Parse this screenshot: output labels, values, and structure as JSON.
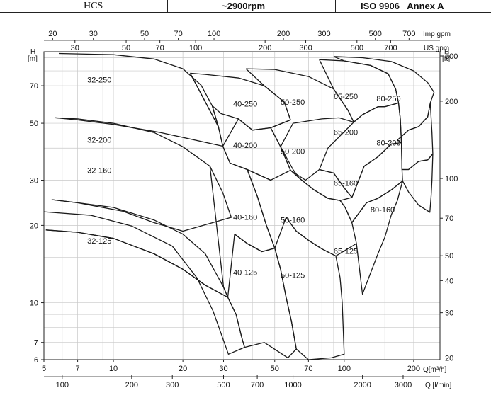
{
  "header": {
    "series": "HCS",
    "speed": "~2900rpm",
    "standard": "ISO 9906   Annex A"
  },
  "chart_data": {
    "type": "line",
    "title": "",
    "subtitle": "",
    "xlabel": "Q[m³/h]",
    "ylabel": "H [m]",
    "x_scale": "log",
    "y_scale": "log",
    "xlim": [
      5,
      260
    ],
    "ylim": [
      6,
      95
    ],
    "grid": true,
    "axis_labels": {
      "y_left_unit": "H\n[m]",
      "y_right_unit": "H\n[ft]",
      "x_bottom_unit": "Q[m³/h]",
      "x_lpm_unit": "Q [l/min]",
      "x_imp_unit": "Imp gpm",
      "x_us_unit": "US gpm"
    },
    "tick_labels": {
      "m3h": [
        "5",
        "7",
        "10",
        "20",
        "30",
        "50",
        "70",
        "100",
        "200"
      ],
      "lpm": [
        "100",
        "200",
        "300",
        "500",
        "700",
        "1000",
        "2000",
        "3000"
      ],
      "imp": [
        "20",
        "30",
        "50",
        "70",
        "100",
        "200",
        "300",
        "500",
        "700"
      ],
      "us": [
        "30",
        "50",
        "70",
        "100",
        "200",
        "300",
        "500",
        "700"
      ],
      "h_m": [
        "6",
        "7",
        "10",
        "20",
        "30",
        "50",
        "70"
      ],
      "h_ft": [
        "20",
        "30",
        "40",
        "50",
        "70",
        "100",
        "200",
        "300"
      ]
    },
    "scale_values": {
      "lpm": [
        100,
        200,
        300,
        500,
        700,
        1000,
        2000,
        3000
      ],
      "imp": [
        20,
        30,
        50,
        70,
        100,
        200,
        300,
        500,
        700
      ],
      "us": [
        30,
        50,
        70,
        100,
        200,
        300,
        500,
        700
      ],
      "h_ft": [
        20,
        30,
        40,
        50,
        70,
        100,
        200,
        300
      ]
    },
    "series": [
      {
        "name": "32-250",
        "points": [
          [
            5.8,
            93.5
          ],
          [
            10,
            92.5
          ],
          [
            15,
            89
          ],
          [
            20,
            81.5
          ],
          [
            24,
            70.3
          ],
          [
            26.8,
            58.5
          ],
          [
            28.5,
            48.5
          ],
          [
            29.8,
            40.7
          ],
          [
            16,
            46
          ],
          [
            10,
            49.5
          ],
          [
            7,
            51.5
          ],
          [
            5.6,
            52.5
          ]
        ],
        "label": [
          7.7,
          72
        ]
      },
      {
        "name": "32-200",
        "points": [
          [
            5.6,
            52.5
          ],
          [
            7,
            52
          ],
          [
            10,
            50
          ],
          [
            15,
            46
          ],
          [
            20,
            40.5
          ],
          [
            26.2,
            34
          ],
          [
            29.8,
            26.8
          ],
          [
            32.4,
            21.5
          ],
          [
            20,
            19
          ],
          [
            15,
            20.5
          ],
          [
            11,
            22.7
          ],
          [
            7,
            24.5
          ],
          [
            5.4,
            25.2
          ]
        ],
        "label": [
          7.7,
          42
        ]
      },
      {
        "name": "32-160",
        "points": [
          [
            5.4,
            25.2
          ],
          [
            7,
            24.5
          ],
          [
            10,
            23.5
          ],
          [
            15,
            21
          ],
          [
            20,
            18.5
          ],
          [
            25,
            15.5
          ],
          [
            30,
            11.5
          ],
          [
            31.3,
            10.5
          ],
          [
            25,
            11.7
          ],
          [
            20,
            13.5
          ],
          [
            15,
            15.5
          ],
          [
            10,
            17.8
          ],
          [
            7,
            18.8
          ],
          [
            5.1,
            19.2
          ]
        ],
        "label": [
          7.7,
          32
        ]
      },
      {
        "name": "32-125",
        "points": [
          [
            5.1,
            19.2
          ],
          [
            7,
            18.8
          ],
          [
            10,
            17.8
          ],
          [
            15,
            15.5
          ],
          [
            20,
            13.5
          ],
          [
            25,
            11.7
          ],
          [
            31.3,
            10.5
          ],
          [
            34,
            9
          ],
          [
            36,
            7.3
          ],
          [
            37,
            6.7
          ],
          [
            31.5,
            6.3
          ],
          [
            27,
            9.3
          ],
          [
            23,
            12.5
          ],
          [
            18,
            16.6
          ],
          [
            12,
            19.9
          ],
          [
            8,
            21.9
          ],
          [
            5,
            22.6
          ]
        ],
        "label": [
          7.7,
          17
        ]
      },
      {
        "name": "40-250",
        "points": [
          [
            21.5,
            78.3
          ],
          [
            25,
            77.5
          ],
          [
            35,
            75
          ],
          [
            45,
            70
          ],
          [
            55,
            60.5
          ],
          [
            58.5,
            51.5
          ],
          [
            48,
            48
          ],
          [
            40,
            47
          ],
          [
            34.8,
            52
          ],
          [
            32.5,
            53
          ],
          [
            29.3,
            54.5
          ],
          [
            26.8,
            58.5
          ],
          [
            28.5,
            48.5
          ],
          [
            21.5,
            78.3
          ]
        ],
        "label": [
          33,
          58
        ]
      },
      {
        "name": "40-200",
        "points": [
          [
            21.5,
            78.3
          ],
          [
            28.5,
            48.5
          ],
          [
            29.8,
            40.7
          ],
          [
            34.8,
            52
          ],
          [
            40,
            47
          ],
          [
            48,
            48
          ],
          [
            53,
            40.5
          ],
          [
            58.5,
            32.8
          ],
          [
            48,
            30
          ],
          [
            38,
            33
          ],
          [
            32,
            35
          ],
          [
            29.8,
            40.7
          ]
        ],
        "label": [
          33,
          40
        ]
      },
      {
        "name": "40-160",
        "points": [
          [
            29.8,
            40.7
          ],
          [
            32,
            35
          ],
          [
            38,
            33
          ],
          [
            42,
            26
          ],
          [
            46,
            20
          ],
          [
            50,
            16.3
          ],
          [
            44,
            15.8
          ],
          [
            38,
            17
          ],
          [
            33.5,
            18.5
          ],
          [
            31.3,
            10.5
          ],
          [
            30,
            11.5
          ],
          [
            26.2,
            34
          ]
        ],
        "label": [
          33,
          21
        ]
      },
      {
        "name": "40-125",
        "points": [
          [
            33.5,
            18.5
          ],
          [
            38,
            17
          ],
          [
            44,
            15.8
          ],
          [
            50,
            16.3
          ],
          [
            53,
            13.5
          ],
          [
            56,
            10.5
          ],
          [
            59,
            8.5
          ],
          [
            62,
            6.6
          ],
          [
            57,
            6.1
          ],
          [
            45,
            7
          ],
          [
            37,
            6.7
          ],
          [
            36,
            7.3
          ],
          [
            34,
            9
          ],
          [
            31.3,
            10.5
          ]
        ],
        "label": [
          33,
          12.8
        ]
      },
      {
        "name": "50-250",
        "points": [
          [
            37.5,
            81.5
          ],
          [
            50,
            81
          ],
          [
            70,
            76
          ],
          [
            90,
            68
          ],
          [
            104,
            56
          ],
          [
            110,
            50.5
          ],
          [
            95,
            52.5
          ],
          [
            80,
            52
          ],
          [
            60,
            50
          ],
          [
            53,
            40.5
          ],
          [
            48,
            48
          ],
          [
            58.5,
            51.5
          ],
          [
            55,
            60.5
          ],
          [
            45,
            70
          ],
          [
            37.5,
            81.5
          ]
        ],
        "label": [
          53,
          59
        ]
      },
      {
        "name": "50-200",
        "points": [
          [
            53,
            40.5
          ],
          [
            58.5,
            32.8
          ],
          [
            68,
            30
          ],
          [
            78,
            33
          ],
          [
            90,
            32
          ],
          [
            100,
            28
          ],
          [
            108,
            25.7
          ],
          [
            96,
            25
          ],
          [
            85,
            25.5
          ],
          [
            74,
            27.5
          ],
          [
            64,
            30.5
          ],
          [
            60,
            33
          ],
          [
            53,
            40.5
          ]
        ],
        "label": [
          53,
          38
        ]
      },
      {
        "name": "50-160",
        "points": [
          [
            58.5,
            32.8
          ],
          [
            64,
            30.5
          ],
          [
            74,
            27.5
          ],
          [
            85,
            25.5
          ],
          [
            96,
            25
          ],
          [
            101,
            23.5
          ],
          [
            108,
            20.5
          ],
          [
            113,
            17
          ],
          [
            92,
            15.2
          ],
          [
            80,
            16.2
          ],
          [
            70,
            17.5
          ],
          [
            62,
            19
          ],
          [
            56,
            21.5
          ],
          [
            50,
            16.3
          ],
          [
            46,
            20
          ],
          [
            42,
            26
          ],
          [
            38,
            33
          ],
          [
            48,
            30
          ]
        ],
        "label": [
          53,
          20.5
        ]
      },
      {
        "name": "50-125",
        "points": [
          [
            56,
            21.5
          ],
          [
            62,
            19
          ],
          [
            70,
            17.5
          ],
          [
            80,
            16.2
          ],
          [
            92,
            15.2
          ],
          [
            96,
            12.5
          ],
          [
            98,
            10
          ],
          [
            100,
            6.3
          ],
          [
            88,
            6.1
          ],
          [
            70,
            6
          ],
          [
            62,
            6.6
          ],
          [
            59,
            8.5
          ],
          [
            56,
            10.5
          ],
          [
            53,
            13.5
          ],
          [
            50,
            16.3
          ]
        ],
        "label": [
          53,
          12.5
        ]
      },
      {
        "name": "65-250",
        "points": [
          [
            78,
            88.5
          ],
          [
            100,
            87.5
          ],
          [
            130,
            84
          ],
          [
            155,
            78
          ],
          [
            167,
            68
          ],
          [
            172,
            60
          ],
          [
            150,
            58
          ],
          [
            140,
            58
          ],
          [
            120,
            54
          ],
          [
            110,
            50.5
          ],
          [
            104,
            56
          ],
          [
            90,
            68
          ],
          [
            78,
            88.5
          ]
        ],
        "label": [
          90,
          62
        ]
      },
      {
        "name": "65-200",
        "points": [
          [
            110,
            50.5
          ],
          [
            120,
            54
          ],
          [
            140,
            58
          ],
          [
            150,
            58
          ],
          [
            172,
            60
          ],
          [
            175,
            52
          ],
          [
            177,
            42
          ],
          [
            160,
            41.5
          ],
          [
            140,
            37
          ],
          [
            122,
            34
          ],
          [
            108,
            25.7
          ],
          [
            100,
            28
          ],
          [
            90,
            32
          ],
          [
            78,
            33
          ],
          [
            85,
            40
          ],
          [
            110,
            50.5
          ]
        ],
        "label": [
          90,
          45
        ]
      },
      {
        "name": "65-160",
        "points": [
          [
            108,
            25.7
          ],
          [
            122,
            34
          ],
          [
            140,
            37
          ],
          [
            160,
            41.5
          ],
          [
            177,
            42
          ],
          [
            178,
            33
          ],
          [
            179,
            29.8
          ],
          [
            160,
            27.5
          ],
          [
            140,
            25.5
          ],
          [
            125,
            24.5
          ],
          [
            110,
            21
          ],
          [
            108,
            20.5
          ],
          [
            101,
            23.5
          ],
          [
            96,
            25
          ]
        ],
        "label": [
          90,
          28.5
        ]
      },
      {
        "name": "65-125",
        "points": [
          [
            108,
            20.5
          ],
          [
            110,
            21
          ],
          [
            125,
            24.5
          ],
          [
            140,
            25.5
          ],
          [
            160,
            27.5
          ],
          [
            179,
            29.8
          ],
          [
            170,
            25
          ],
          [
            160,
            22
          ],
          [
            150,
            18
          ],
          [
            140,
            15.5
          ],
          [
            120,
            10.8
          ],
          [
            113,
            17
          ]
        ],
        "label": [
          90,
          15.5
        ]
      },
      {
        "name": "80-250",
        "points": [
          [
            90,
            91
          ],
          [
            120,
            90
          ],
          [
            160,
            87
          ],
          [
            200,
            80
          ],
          [
            230,
            72
          ],
          [
            245,
            66
          ],
          [
            236,
            60
          ],
          [
            230,
            53
          ],
          [
            210,
            48.5
          ],
          [
            190,
            47
          ],
          [
            170,
            43
          ],
          [
            177,
            42
          ],
          [
            175,
            52
          ],
          [
            172,
            60
          ],
          [
            167,
            68
          ],
          [
            155,
            78
          ],
          [
            130,
            84
          ],
          [
            100,
            87.5
          ],
          [
            90,
            91
          ]
        ],
        "label": [
          138,
          61
        ]
      },
      {
        "name": "80-200",
        "points": [
          [
            170,
            43
          ],
          [
            190,
            47
          ],
          [
            210,
            48.5
          ],
          [
            230,
            53
          ],
          [
            236,
            60
          ],
          [
            240,
            46
          ],
          [
            242,
            38
          ],
          [
            230,
            36
          ],
          [
            210,
            35.5
          ],
          [
            190,
            33
          ],
          [
            178,
            33
          ],
          [
            177,
            42
          ]
        ],
        "label": [
          138,
          41
        ]
      },
      {
        "name": "80-160",
        "points": [
          [
            178,
            33
          ],
          [
            190,
            33
          ],
          [
            210,
            35.5
          ],
          [
            230,
            36
          ],
          [
            242,
            38
          ],
          [
            240,
            30
          ],
          [
            238,
            26
          ],
          [
            235,
            22.5
          ],
          [
            210,
            24
          ],
          [
            190,
            27
          ],
          [
            179,
            29.8
          ]
        ],
        "label": [
          130,
          22.5
        ]
      }
    ]
  }
}
